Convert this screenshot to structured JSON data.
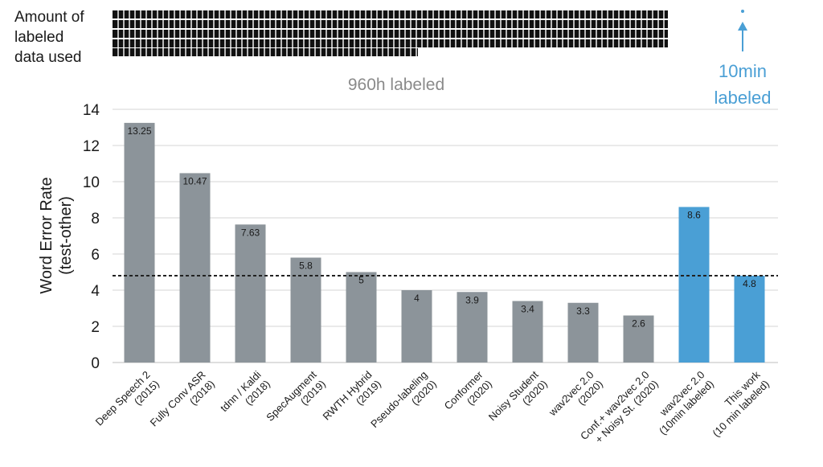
{
  "header": {
    "amount_label_lines": [
      "Amount of",
      "labeled",
      "data used"
    ],
    "big_data_label": "960h labeled",
    "small_data_label_lines": [
      "10min",
      "labeled"
    ]
  },
  "chart_data": {
    "type": "bar",
    "title": "",
    "ylabel_lines": [
      "Word Error Rate",
      "(test-other)"
    ],
    "xlabel": "",
    "ylim": [
      0,
      14
    ],
    "yticks": [
      0,
      2,
      4,
      6,
      8,
      10,
      12,
      14
    ],
    "grid": true,
    "reference_line": 4.8,
    "categories": [
      [
        "Deep Speech 2",
        "(2015)"
      ],
      [
        "Fully Conv ASR",
        "(2018)"
      ],
      [
        "tdnn / Kaldi",
        "(2018)"
      ],
      [
        "SpecAugment",
        "(2019)"
      ],
      [
        "RWTH Hybrid",
        "(2019)"
      ],
      [
        "Pseudo-labeling",
        "(2020)"
      ],
      [
        "Conformer",
        "(2020)"
      ],
      [
        "Noisy Student",
        "(2020)"
      ],
      [
        "wav2vec 2.0",
        "(2020)"
      ],
      [
        "Conf.+ wav2vec 2.0",
        "+ Noisy St. (2020)"
      ],
      [
        "wav2vec 2.0",
        "(10min labeled)"
      ],
      [
        "This work",
        "(10 min labeled)"
      ]
    ],
    "values": [
      13.25,
      10.47,
      7.63,
      5.8,
      5,
      4,
      3.9,
      3.4,
      3.3,
      2.6,
      8.6,
      4.8
    ],
    "value_labels": [
      "13.25",
      "10.47",
      "7.63",
      "5.8",
      "5",
      "4",
      "3.9",
      "3.4",
      "3.3",
      "2.6",
      "8.6",
      "4.8"
    ],
    "highlighted": [
      false,
      false,
      false,
      false,
      false,
      false,
      false,
      false,
      false,
      false,
      true,
      true
    ],
    "colors": {
      "bar": "#8c949a",
      "highlight": "#4a9fd5",
      "grid": "#d4d4d4",
      "text": "#1a1a1a",
      "muted_text": "#8a8a8a",
      "accent_text": "#4a9fd5",
      "dots": "#111111"
    }
  }
}
